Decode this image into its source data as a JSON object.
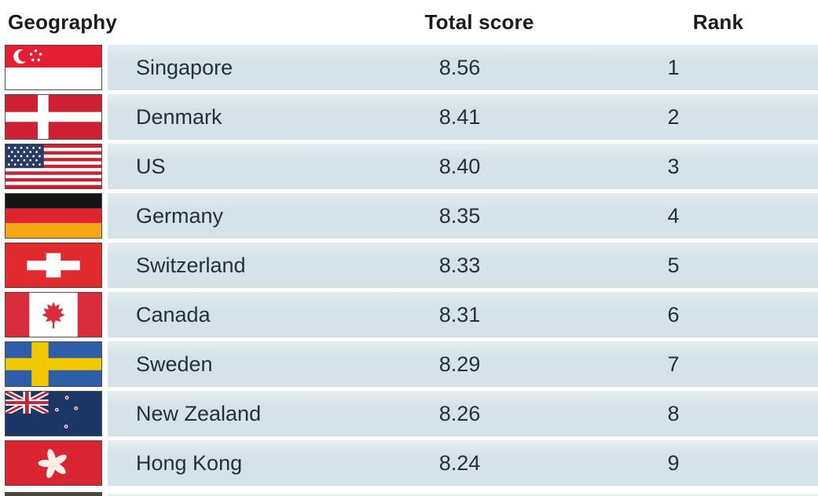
{
  "chart_data": {
    "type": "table",
    "columns": [
      "Geography",
      "Total score",
      "Rank"
    ],
    "rows": [
      [
        "Singapore",
        8.56,
        1
      ],
      [
        "Denmark",
        8.41,
        2
      ],
      [
        "US",
        8.4,
        3
      ],
      [
        "Germany",
        8.35,
        4
      ],
      [
        "Switzerland",
        8.33,
        5
      ],
      [
        "Canada",
        8.31,
        6
      ],
      [
        "Sweden",
        8.29,
        7
      ],
      [
        "New Zealand",
        8.26,
        8
      ],
      [
        "Hong Kong",
        8.24,
        9
      ]
    ]
  },
  "table": {
    "headers": {
      "geography": "Geography",
      "total_score": "Total score",
      "rank": "Rank"
    },
    "rows": [
      {
        "country": "Singapore",
        "score": "8.56",
        "rank": "1",
        "flag": "singapore"
      },
      {
        "country": "Denmark",
        "score": "8.41",
        "rank": "2",
        "flag": "denmark"
      },
      {
        "country": "US",
        "score": "8.40",
        "rank": "3",
        "flag": "us"
      },
      {
        "country": "Germany",
        "score": "8.35",
        "rank": "4",
        "flag": "germany"
      },
      {
        "country": "Switzerland",
        "score": "8.33",
        "rank": "5",
        "flag": "switzerland"
      },
      {
        "country": "Canada",
        "score": "8.31",
        "rank": "6",
        "flag": "canada"
      },
      {
        "country": "Sweden",
        "score": "8.29",
        "rank": "7",
        "flag": "sweden"
      },
      {
        "country": "New Zealand",
        "score": "8.26",
        "rank": "8",
        "flag": "newzealand"
      },
      {
        "country": "Hong Kong",
        "score": "8.24",
        "rank": "9",
        "flag": "hongkong"
      }
    ]
  },
  "colors": {
    "row_bg": "#d5e2e9",
    "row_bg_highlight": "#e4edf1",
    "text_color": "#25303c",
    "header_text": "#1c1c1c"
  }
}
